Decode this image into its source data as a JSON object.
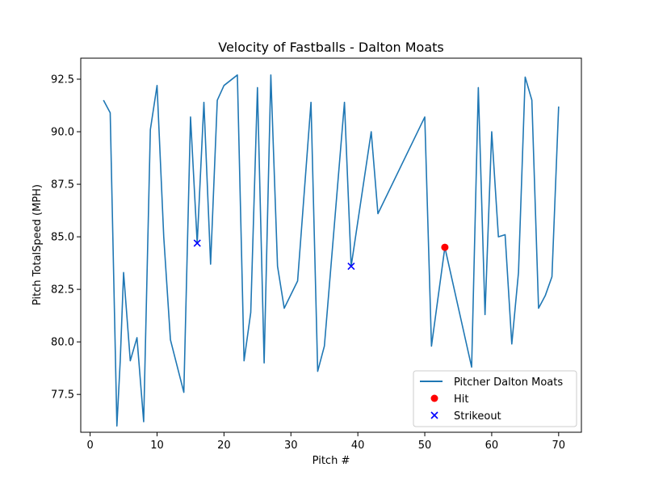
{
  "chart_data": {
    "type": "line",
    "title": "Velocity of Fastballs - Dalton Moats",
    "xlabel": "Pitch #",
    "ylabel": "Pitch TotalSpeed (MPH)",
    "xlim": [
      -1.4,
      73.4
    ],
    "ylim": [
      75.7,
      93.5
    ],
    "xticks": [
      0,
      10,
      20,
      30,
      40,
      50,
      60,
      70
    ],
    "yticks": [
      77.5,
      80.0,
      82.5,
      85.0,
      87.5,
      90.0,
      92.5
    ],
    "xtick_labels": [
      "0",
      "10",
      "20",
      "30",
      "40",
      "50",
      "60",
      "70"
    ],
    "ytick_labels": [
      "77.5",
      "80.0",
      "82.5",
      "85.0",
      "87.5",
      "90.0",
      "92.5"
    ],
    "grid": false,
    "legend_position": "lower-right",
    "colors": {
      "line": "#1f77b4",
      "hit": "#ff0000",
      "strikeout": "#0000ff"
    },
    "series": [
      {
        "name": "Pitcher Dalton Moats",
        "style": "line",
        "x": [
          2,
          3,
          4,
          4.5,
          5,
          6,
          7,
          8,
          9,
          10,
          11,
          12,
          14,
          15,
          16,
          17,
          18,
          19,
          20,
          22,
          23,
          24,
          25,
          26,
          27,
          28,
          29,
          31,
          33,
          34,
          35,
          38,
          39,
          42,
          43,
          50,
          51,
          53,
          57,
          58,
          59,
          60,
          61,
          62,
          63,
          64,
          65,
          66,
          67,
          68,
          69,
          70
        ],
        "y": [
          91.5,
          90.9,
          76.0,
          79.1,
          83.3,
          79.1,
          80.2,
          76.2,
          90.1,
          92.2,
          85.0,
          80.1,
          77.6,
          90.7,
          84.7,
          91.4,
          83.7,
          91.5,
          92.2,
          92.7,
          79.1,
          81.4,
          92.1,
          79.0,
          92.7,
          83.6,
          81.6,
          82.9,
          91.4,
          78.6,
          79.8,
          91.4,
          83.6,
          90.0,
          86.1,
          90.7,
          79.8,
          84.5,
          78.8,
          92.1,
          81.3,
          90.0,
          85.0,
          85.1,
          79.9,
          83.3,
          92.6,
          91.5,
          81.6,
          82.2,
          83.1,
          91.2
        ]
      },
      {
        "name": "Hit",
        "style": "scatter",
        "marker": "circle",
        "x": [
          53
        ],
        "y": [
          84.5
        ]
      },
      {
        "name": "Strikeout",
        "style": "scatter",
        "marker": "x",
        "x": [
          16,
          39
        ],
        "y": [
          84.7,
          83.6
        ]
      }
    ]
  }
}
